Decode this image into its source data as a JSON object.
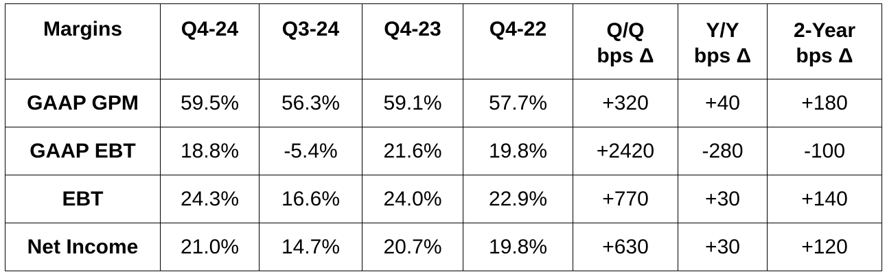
{
  "table": {
    "columns": [
      "Margins",
      "Q4-24",
      "Q3-24",
      "Q4-23",
      "Q4-22"
    ],
    "delta_columns": [
      {
        "line1": "Q/Q",
        "line2": "bps Δ"
      },
      {
        "line1": "Y/Y",
        "line2": "bps Δ"
      },
      {
        "line1": "2-Year",
        "line2": "bps Δ"
      }
    ],
    "rows": [
      {
        "label": "GAAP GPM",
        "values": [
          "59.5%",
          "56.3%",
          "59.1%",
          "57.7%",
          "+320",
          "+40",
          "+180"
        ]
      },
      {
        "label": "GAAP EBT",
        "values": [
          "18.8%",
          "-5.4%",
          "21.6%",
          "19.8%",
          "+2420",
          "-280",
          "-100"
        ]
      },
      {
        "label": "EBT",
        "values": [
          "24.3%",
          "16.6%",
          "24.0%",
          "22.9%",
          "+770",
          "+30",
          "+140"
        ]
      },
      {
        "label": "Net Income",
        "values": [
          "21.0%",
          "14.7%",
          "20.7%",
          "19.8%",
          "+630",
          "+30",
          "+120"
        ]
      }
    ]
  }
}
